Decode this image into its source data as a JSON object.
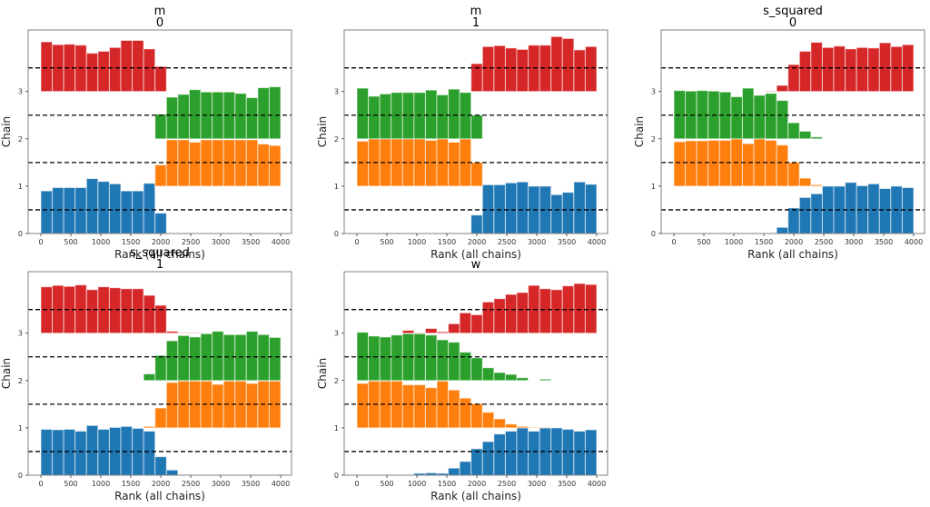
{
  "chart_data": {
    "type": "bar",
    "kind": "rank-plot",
    "bins": 21,
    "xlim": [
      0,
      4000
    ],
    "xticks": [
      0,
      500,
      1000,
      1500,
      2000,
      2500,
      3000,
      3500,
      4000
    ],
    "yticks": [
      0,
      1,
      2,
      3
    ],
    "ref_lines": [
      0.5,
      1.5,
      2.5,
      3.5
    ],
    "xlabel": "Rank (all chains)",
    "ylabel": "Chain",
    "grid": false,
    "chain_colors": [
      "#1f77b4",
      "#ff7f0e",
      "#2ca02c",
      "#d62728"
    ],
    "panels": [
      {
        "title_line1": "m",
        "title_line2": "0",
        "series": [
          {
            "chain": 0,
            "start_bin": 0,
            "values": [
              0.9,
              0.97,
              0.97,
              0.97,
              1.16,
              1.1,
              1.05,
              0.9,
              0.9,
              1.06,
              0.43
            ]
          },
          {
            "chain": 1,
            "start_bin": 10,
            "values": [
              0.45,
              0.98,
              0.98,
              0.93,
              0.98,
              0.98,
              0.98,
              0.98,
              0.98,
              0.89,
              0.86
            ]
          },
          {
            "chain": 2,
            "start_bin": 10,
            "values": [
              0.52,
              0.88,
              0.94,
              1.04,
              0.99,
              0.99,
              0.99,
              0.96,
              0.87,
              1.08,
              1.1
            ]
          },
          {
            "chain": 3,
            "start_bin": 0,
            "values": [
              1.05,
              0.99,
              1.0,
              0.98,
              0.81,
              0.85,
              0.93,
              1.08,
              1.08,
              0.9,
              0.53
            ]
          }
        ]
      },
      {
        "title_line1": "m",
        "title_line2": "1",
        "series": [
          {
            "chain": 0,
            "start_bin": 10,
            "values": [
              0.39,
              1.03,
              1.03,
              1.07,
              1.09,
              1.0,
              1.0,
              0.82,
              0.87,
              1.09,
              1.04
            ]
          },
          {
            "chain": 1,
            "start_bin": 0,
            "values": [
              0.95,
              1.0,
              1.0,
              1.0,
              1.0,
              1.0,
              0.97,
              1.0,
              0.93,
              1.0,
              0.5
            ]
          },
          {
            "chain": 2,
            "start_bin": 0,
            "values": [
              1.07,
              0.9,
              0.95,
              0.98,
              0.98,
              0.98,
              1.03,
              0.93,
              1.05,
              0.98,
              0.5
            ]
          },
          {
            "chain": 3,
            "start_bin": 10,
            "values": [
              0.59,
              0.95,
              0.97,
              0.92,
              0.89,
              0.98,
              0.98,
              1.16,
              1.12,
              0.88,
              0.95
            ]
          }
        ]
      },
      {
        "title_line1": "s_squared",
        "title_line2": "0",
        "series": [
          {
            "chain": 0,
            "start_bin": 9,
            "values": [
              0.13,
              0.54,
              0.76,
              0.84,
              1.0,
              1.0,
              1.08,
              1.01,
              1.05,
              0.95,
              1.0,
              0.97
            ]
          },
          {
            "chain": 1,
            "start_bin": 0,
            "values": [
              0.94,
              0.96,
              0.96,
              0.97,
              0.97,
              1.0,
              0.9,
              1.0,
              0.97,
              0.87,
              0.5,
              0.17,
              0.03
            ]
          },
          {
            "chain": 2,
            "start_bin": 0,
            "values": [
              1.02,
              1.01,
              1.02,
              1.01,
              0.99,
              0.89,
              1.07,
              0.92,
              0.96,
              0.81,
              0.34,
              0.16,
              0.04
            ]
          },
          {
            "chain": 3,
            "start_bin": 8,
            "values": [
              0.01,
              0.13,
              0.57,
              0.85,
              1.04,
              0.93,
              0.96,
              0.9,
              0.93,
              0.92,
              1.03,
              0.95,
              0.99
            ]
          }
        ]
      },
      {
        "title_line1": "s_squared",
        "title_line2": "1",
        "series": [
          {
            "chain": 0,
            "start_bin": 0,
            "values": [
              0.97,
              0.96,
              0.97,
              0.93,
              1.05,
              0.97,
              1.01,
              1.03,
              0.99,
              0.93,
              0.39,
              0.11,
              0.01
            ]
          },
          {
            "chain": 1,
            "start_bin": 9,
            "values": [
              0.03,
              0.42,
              0.96,
              0.99,
              0.99,
              0.99,
              0.92,
              0.99,
              0.99,
              0.94,
              0.99,
              0.99
            ]
          },
          {
            "chain": 2,
            "start_bin": 9,
            "values": [
              0.14,
              0.53,
              0.84,
              0.95,
              0.92,
              0.99,
              1.04,
              0.97,
              0.97,
              1.04,
              0.97,
              0.91
            ]
          },
          {
            "chain": 3,
            "start_bin": 0,
            "values": [
              0.98,
              1.01,
              0.99,
              1.02,
              0.92,
              0.98,
              0.96,
              0.94,
              0.94,
              0.8,
              0.59,
              0.04,
              0.01,
              0.01
            ]
          }
        ]
      },
      {
        "title_line1": "w",
        "title_line2": "",
        "series": [
          {
            "chain": 0,
            "start_bin": 5,
            "values": [
              0.04,
              0.05,
              0.04,
              0.15,
              0.29,
              0.56,
              0.71,
              0.87,
              0.93,
              1.0,
              0.93,
              1.0,
              1.0,
              0.97,
              0.93,
              0.96
            ]
          },
          {
            "chain": 1,
            "start_bin": 0,
            "values": [
              0.94,
              0.99,
              0.99,
              0.99,
              0.91,
              0.91,
              0.85,
              0.99,
              0.8,
              0.63,
              0.51,
              0.33,
              0.19,
              0.08,
              0.03,
              0.01,
              0.01
            ]
          },
          {
            "chain": 2,
            "start_bin": 0,
            "values": [
              1.02,
              0.94,
              0.92,
              0.96,
              0.99,
              0.99,
              0.96,
              0.86,
              0.81,
              0.6,
              0.48,
              0.27,
              0.17,
              0.13,
              0.06,
              0,
              0.03
            ]
          },
          {
            "chain": 3,
            "start_bin": 4,
            "values": [
              0.06,
              0.01,
              0.1,
              0.03,
              0.2,
              0.43,
              0.39,
              0.66,
              0.73,
              0.82,
              0.86,
              1.01,
              0.94,
              0.92,
              1.0,
              1.05,
              1.03
            ]
          }
        ]
      }
    ]
  }
}
